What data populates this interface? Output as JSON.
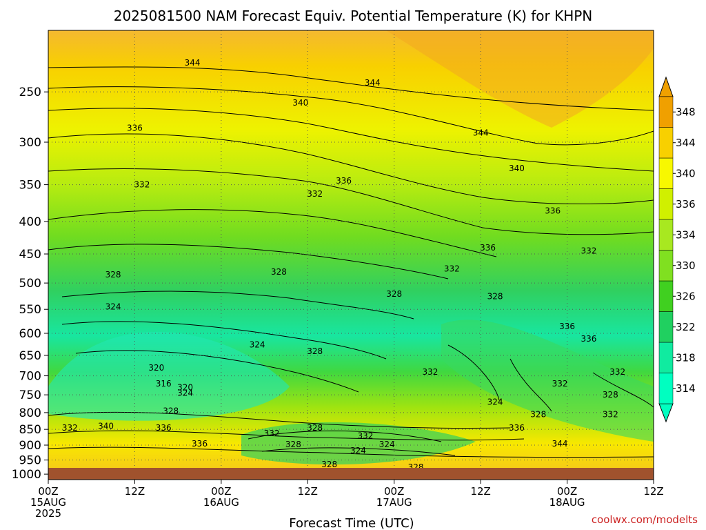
{
  "chart_data": {
    "type": "heatmap",
    "title": "2025081500 NAM Forecast Equiv. Potential Temperature (K) for KHPN",
    "xlabel": "Forecast Time (UTC)",
    "ylabel": "",
    "y_scale": "log",
    "y_reversed": true,
    "ylim": [
      1020,
      200
    ],
    "xlim": [
      0,
      84
    ],
    "y_ticks": [
      250,
      300,
      350,
      400,
      450,
      500,
      550,
      600,
      650,
      700,
      750,
      800,
      850,
      900,
      950,
      1000
    ],
    "x_ticks": [
      {
        "hour": 0,
        "lines": [
          "00Z",
          "15AUG",
          "2025"
        ]
      },
      {
        "hour": 12,
        "lines": [
          "12Z"
        ]
      },
      {
        "hour": 24,
        "lines": [
          "00Z",
          "16AUG"
        ]
      },
      {
        "hour": 36,
        "lines": [
          "12Z"
        ]
      },
      {
        "hour": 48,
        "lines": [
          "00Z",
          "17AUG"
        ]
      },
      {
        "hour": 60,
        "lines": [
          "12Z"
        ]
      },
      {
        "hour": 72,
        "lines": [
          "00Z",
          "18AUG"
        ]
      },
      {
        "hour": 84,
        "lines": [
          "12Z"
        ]
      }
    ],
    "grid": "dotted",
    "colorbar": {
      "position": "right",
      "labels": [
        314,
        318,
        322,
        326,
        330,
        334,
        336,
        340,
        344,
        348
      ],
      "colors": [
        "#00ffc0",
        "#10eba0",
        "#20d060",
        "#40d020",
        "#80e020",
        "#a8e820",
        "#d0f000",
        "#f8f800",
        "#f8d000",
        "#f0a000"
      ],
      "extend": "both"
    },
    "contour_labels": [
      {
        "t": 20,
        "p": 225,
        "v": 344
      },
      {
        "t": 35,
        "p": 260,
        "v": 340
      },
      {
        "t": 45,
        "p": 242,
        "v": 344
      },
      {
        "t": 12,
        "p": 285,
        "v": 336
      },
      {
        "t": 60,
        "p": 290,
        "v": 344
      },
      {
        "t": 65,
        "p": 330,
        "v": 340
      },
      {
        "t": 41,
        "p": 345,
        "v": 336
      },
      {
        "t": 37,
        "p": 362,
        "v": 332
      },
      {
        "t": 13,
        "p": 350,
        "v": 332
      },
      {
        "t": 70,
        "p": 385,
        "v": 336
      },
      {
        "t": 61,
        "p": 440,
        "v": 336
      },
      {
        "t": 75,
        "p": 445,
        "v": 332
      },
      {
        "t": 56,
        "p": 475,
        "v": 332
      },
      {
        "t": 9,
        "p": 485,
        "v": 328
      },
      {
        "t": 32,
        "p": 480,
        "v": 328
      },
      {
        "t": 48,
        "p": 520,
        "v": 328
      },
      {
        "t": 62,
        "p": 525,
        "v": 328
      },
      {
        "t": 9,
        "p": 545,
        "v": 324
      },
      {
        "t": 72,
        "p": 585,
        "v": 336
      },
      {
        "t": 75,
        "p": 612,
        "v": 336
      },
      {
        "t": 29,
        "p": 625,
        "v": 324
      },
      {
        "t": 37,
        "p": 640,
        "v": 328
      },
      {
        "t": 15,
        "p": 680,
        "v": 320
      },
      {
        "t": 53,
        "p": 690,
        "v": 332
      },
      {
        "t": 79,
        "p": 690,
        "v": 332
      },
      {
        "t": 16,
        "p": 720,
        "v": 316
      },
      {
        "t": 19,
        "p": 730,
        "v": 320
      },
      {
        "t": 19,
        "p": 745,
        "v": 324
      },
      {
        "t": 71,
        "p": 720,
        "v": 332
      },
      {
        "t": 78,
        "p": 750,
        "v": 328
      },
      {
        "t": 62,
        "p": 770,
        "v": 324
      },
      {
        "t": 17,
        "p": 795,
        "v": 328
      },
      {
        "t": 68,
        "p": 805,
        "v": 328
      },
      {
        "t": 78,
        "p": 805,
        "v": 332
      },
      {
        "t": 8,
        "p": 840,
        "v": 340
      },
      {
        "t": 3,
        "p": 845,
        "v": 332
      },
      {
        "t": 16,
        "p": 845,
        "v": 336
      },
      {
        "t": 65,
        "p": 845,
        "v": 336
      },
      {
        "t": 37,
        "p": 845,
        "v": 328
      },
      {
        "t": 31,
        "p": 862,
        "v": 332
      },
      {
        "t": 44,
        "p": 870,
        "v": 332
      },
      {
        "t": 71,
        "p": 895,
        "v": 344
      },
      {
        "t": 21,
        "p": 895,
        "v": 336
      },
      {
        "t": 34,
        "p": 898,
        "v": 328
      },
      {
        "t": 47,
        "p": 898,
        "v": 324
      },
      {
        "t": 43,
        "p": 918,
        "v": 324
      },
      {
        "t": 39,
        "p": 965,
        "v": 328
      },
      {
        "t": 51,
        "p": 975,
        "v": 328
      },
      {
        "t": 53,
        "p": 1003,
        "v": 332
      }
    ]
  },
  "credit": "coolwx.com/modelts"
}
